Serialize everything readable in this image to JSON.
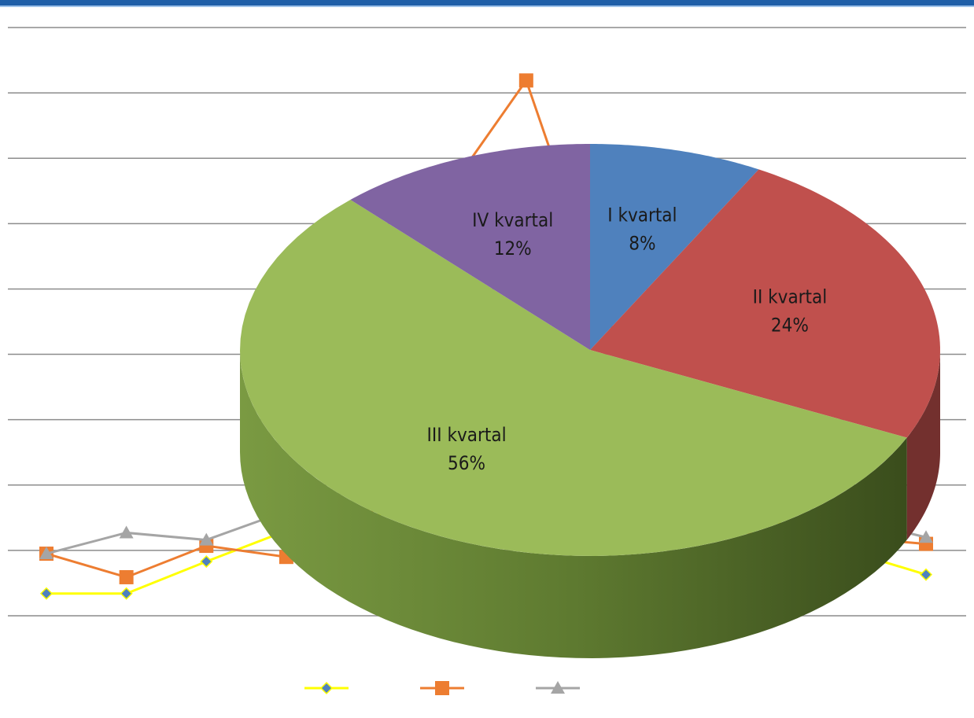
{
  "chart_data": [
    {
      "type": "line",
      "categories": [
        null,
        null,
        null,
        null,
        null,
        null,
        null,
        null,
        null,
        null,
        null,
        null
      ],
      "ylim": [
        0,
        9
      ],
      "yticks": [
        0,
        1,
        2,
        3,
        4,
        5,
        6,
        7,
        8,
        9
      ],
      "grid": true,
      "series": [
        {
          "color": "#ffff00",
          "marker": "diamond",
          "marker_color": "#4f81bd",
          "values": [
            0.34,
            0.34,
            0.83,
            1.3,
            1.5,
            1.8,
            2,
            2,
            1.8,
            1.5,
            1,
            0.63
          ]
        },
        {
          "color": "#ed7d31",
          "marker": "square",
          "marker_color": "#ed7d31",
          "values": [
            0.95,
            0.59,
            1.07,
            0.9,
            1.5,
            6.45,
            8.19,
            4.63,
            1.5,
            1.2,
            1.2,
            1.1
          ]
        },
        {
          "color": "#a5a5a5",
          "marker": "triangle",
          "marker_color": "#a5a5a5",
          "values": [
            0.95,
            1.27,
            1.16,
            1.6,
            2,
            2.2,
            2.4,
            2.2,
            2,
            1.8,
            1.5,
            1.2
          ]
        }
      ]
    },
    {
      "type": "pie",
      "categories": [
        "I kvartal",
        "II kvartal",
        "III kvartal",
        "IV kvartal"
      ],
      "values": [
        8,
        24,
        56,
        12
      ],
      "value_labels": [
        "8%",
        "24%",
        "56%",
        "12%"
      ],
      "colors": [
        "#4f81bd",
        "#c0504d",
        "#9bbb59",
        "#8064a2"
      ]
    }
  ]
}
